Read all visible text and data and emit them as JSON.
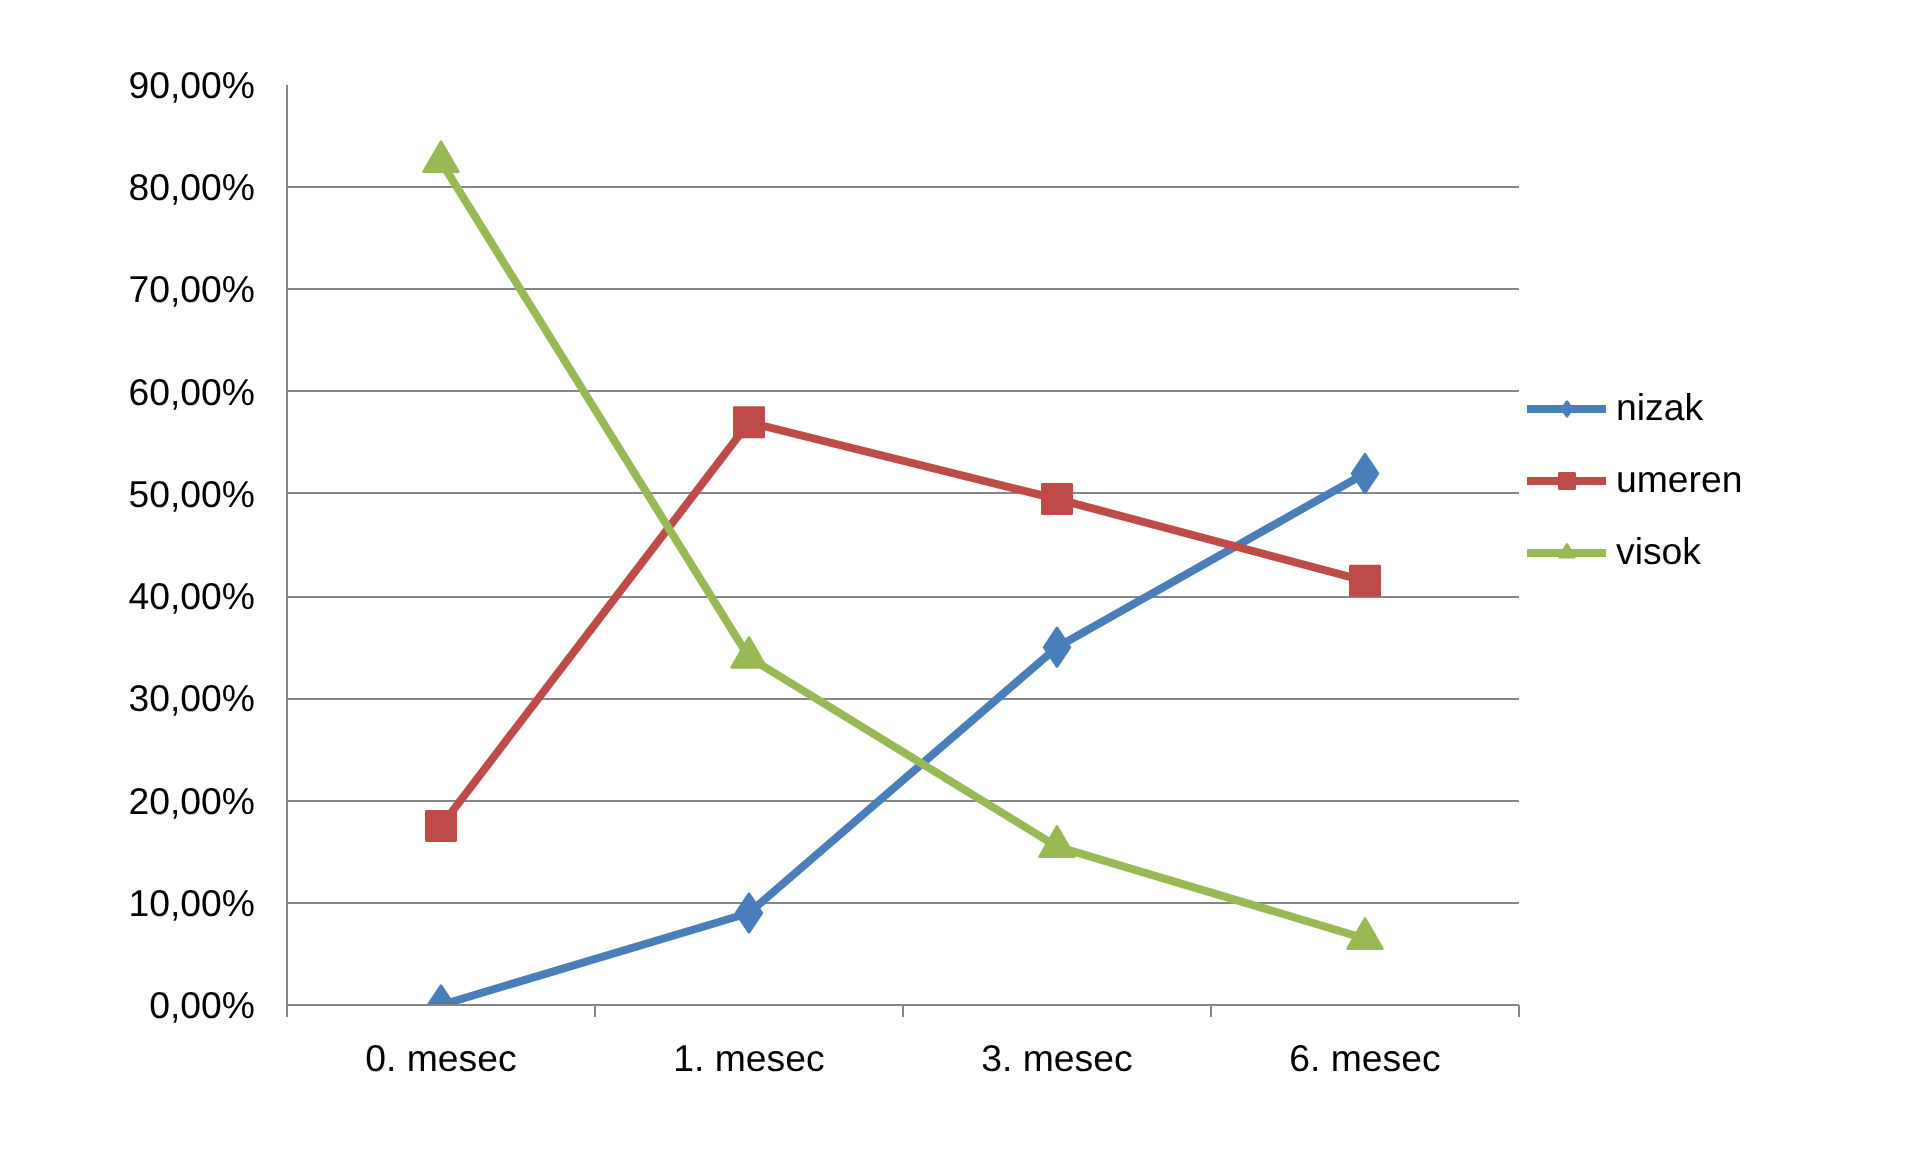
{
  "chart_data": {
    "type": "line",
    "categories": [
      "0. mesec",
      "1. mesec",
      "3. mesec",
      "6. mesec"
    ],
    "series": [
      {
        "name": "nizak",
        "color": "#4a7ebb",
        "marker": "diamond",
        "values": [
          0,
          9.0,
          35.0,
          52.0
        ]
      },
      {
        "name": "umeren",
        "color": "#be4b48",
        "marker": "square",
        "values": [
          17.5,
          57.0,
          49.5,
          41.5
        ]
      },
      {
        "name": "visok",
        "color": "#98b954",
        "marker": "triangle",
        "values": [
          82.5,
          34.0,
          15.5,
          6.5
        ]
      }
    ],
    "ylim": [
      0,
      90
    ],
    "yticks": [
      {
        "value": 0,
        "label": "0,00%"
      },
      {
        "value": 10,
        "label": "10,00%"
      },
      {
        "value": 20,
        "label": "20,00%"
      },
      {
        "value": 30,
        "label": "30,00%"
      },
      {
        "value": 40,
        "label": "40,00%"
      },
      {
        "value": 50,
        "label": "50,00%"
      },
      {
        "value": 60,
        "label": "60,00%"
      },
      {
        "value": 70,
        "label": "70,00%"
      },
      {
        "value": 80,
        "label": "80,00%"
      },
      {
        "value": 90,
        "label": "90,00%"
      }
    ],
    "grid": "y",
    "legend": "right",
    "line_style": "solid"
  }
}
